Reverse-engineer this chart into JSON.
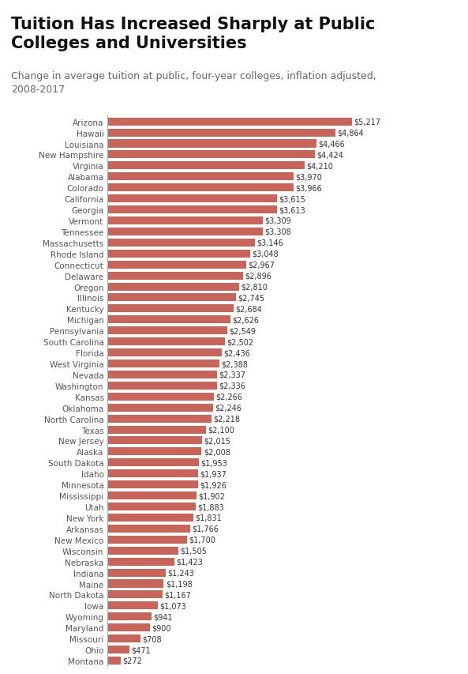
{
  "title": "Tuition Has Increased Sharply at Public\nColleges and Universities",
  "subtitle": "Change in average tuition at public, four-year colleges, inflation adjusted,\n2008-2017",
  "bar_color": "#c8645a",
  "background_color": "#ffffff",
  "states": [
    "Arizona",
    "Hawaii",
    "Louisiana",
    "New Hampshire",
    "Virginia",
    "Alabama",
    "Colorado",
    "California",
    "Georgia",
    "Vermont",
    "Tennessee",
    "Massachusetts",
    "Rhode Island",
    "Connecticut",
    "Delaware",
    "Oregon",
    "Illinois",
    "Kentucky",
    "Michigan",
    "Pennsylvania",
    "South Carolina",
    "Florida",
    "West Virginia",
    "Nevada",
    "Washington",
    "Kansas",
    "Oklahoma",
    "North Carolina",
    "Texas",
    "New Jersey",
    "Alaska",
    "South Dakota",
    "Idaho",
    "Minnesota",
    "Mississippi",
    "Utah",
    "New York",
    "Arkansas",
    "New Mexico",
    "Wisconsin",
    "Nebraska",
    "Indiana",
    "Maine",
    "North Dakota",
    "Iowa",
    "Wyoming",
    "Maryland",
    "Missouri",
    "Ohio",
    "Montana"
  ],
  "values": [
    5217,
    4864,
    4466,
    4424,
    4210,
    3970,
    3966,
    3615,
    3613,
    3309,
    3308,
    3146,
    3048,
    2967,
    2896,
    2810,
    2745,
    2684,
    2626,
    2549,
    2502,
    2436,
    2388,
    2337,
    2336,
    2266,
    2246,
    2218,
    2100,
    2015,
    2008,
    1953,
    1937,
    1926,
    1902,
    1883,
    1831,
    1766,
    1700,
    1505,
    1423,
    1243,
    1198,
    1167,
    1073,
    941,
    900,
    708,
    471,
    272
  ],
  "title_fontsize": 15,
  "subtitle_fontsize": 9,
  "label_fontsize": 7,
  "ytick_fontsize": 7.5,
  "xlim": [
    0,
    6400
  ],
  "bar_height": 0.72
}
